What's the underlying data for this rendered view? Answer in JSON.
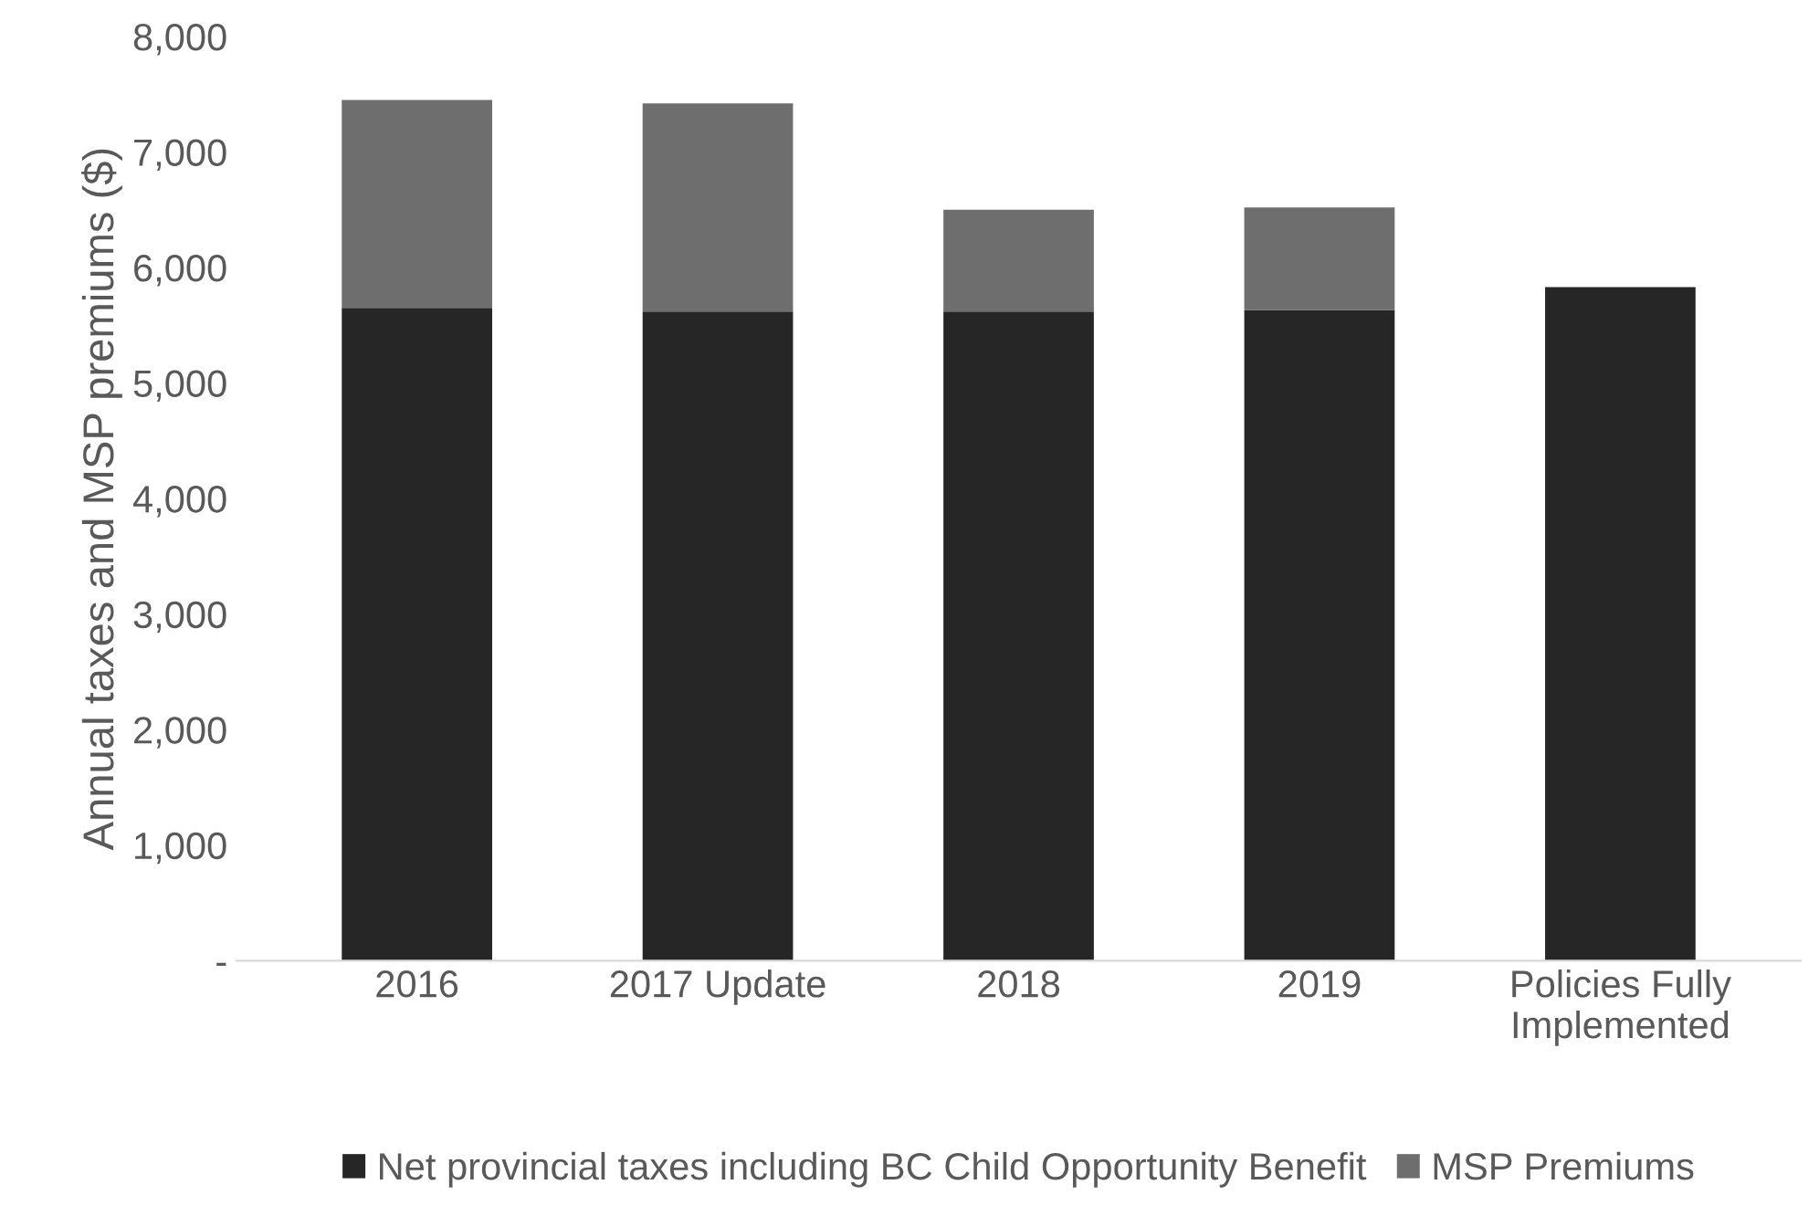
{
  "chart_data": {
    "type": "bar",
    "stacked": true,
    "ylabel": "Annual taxes and MSP premiums ($)",
    "categories": [
      "2016",
      "2017 Update",
      "2018",
      "2019",
      "Policies Fully\nImplemented"
    ],
    "series": [
      {
        "name": "Net provincial taxes including BC Child Opportunity Benefit",
        "color": "#262626",
        "values": [
          5650,
          5620,
          5620,
          5630,
          5830
        ]
      },
      {
        "name": "MSP Premiums",
        "color": "#6e6e6e",
        "values": [
          1800,
          1800,
          880,
          890,
          null
        ]
      }
    ],
    "ylim": [
      0,
      8000
    ],
    "yticks": [
      {
        "value": 0,
        "label": "-"
      },
      {
        "value": 1000,
        "label": "1,000"
      },
      {
        "value": 2000,
        "label": "2,000"
      },
      {
        "value": 3000,
        "label": "3,000"
      },
      {
        "value": 4000,
        "label": "4,000"
      },
      {
        "value": 5000,
        "label": "5,000"
      },
      {
        "value": 6000,
        "label": "6,000"
      },
      {
        "value": 7000,
        "label": "7,000"
      },
      {
        "value": 8000,
        "label": "8,000"
      }
    ],
    "grid": false,
    "legend": "bottom"
  }
}
